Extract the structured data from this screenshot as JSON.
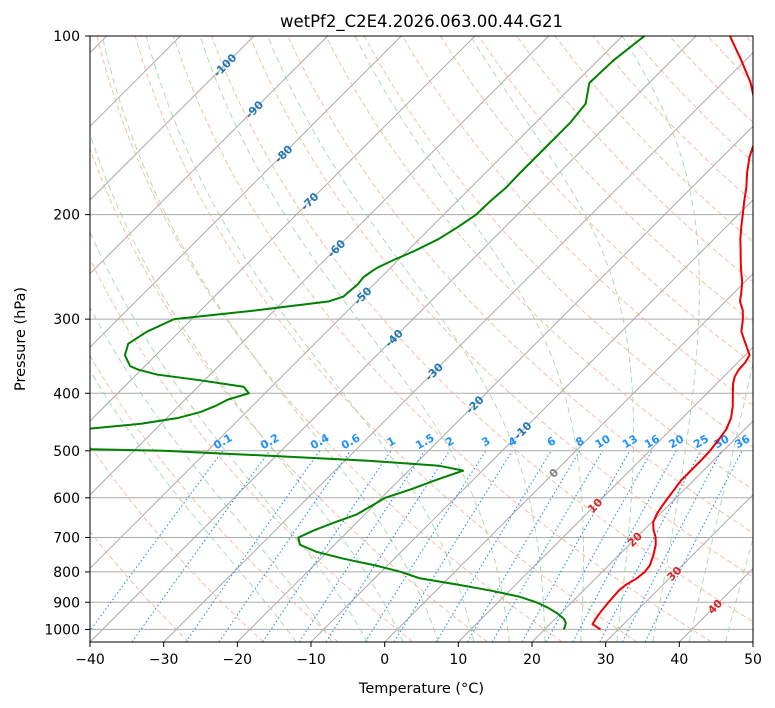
{
  "chart_data": {
    "type": "line",
    "subtype": "skew-t log-p diagram",
    "title": "wetPf2_C2E4.2026.063.00.44.G21",
    "xlabel": "Temperature (°C)",
    "ylabel": "Pressure (hPa)",
    "xlim": [
      -40,
      50
    ],
    "ylim": [
      1050,
      100
    ],
    "y_scale": "log",
    "x_ticks": [
      -40,
      -30,
      -20,
      -10,
      0,
      10,
      20,
      30,
      40,
      50
    ],
    "y_ticks": [
      100,
      200,
      300,
      400,
      500,
      600,
      700,
      800,
      900,
      1000
    ],
    "grid": true,
    "colors": {
      "temperature": "#ee0000",
      "dewpoint": "#008000",
      "isotherm": "#aaaaaa",
      "isobar": "#aaaaaa",
      "dry_adiabat": "#f8a58c",
      "moist_adiabat": "#9ad29a",
      "mixing_ratio": "#1e90ff",
      "isotherm_label_cold": "#1f77b4",
      "isotherm_label_warm": "#d62728",
      "zero_label": "#808080"
    },
    "series": [
      {
        "role": "temperature",
        "pressure": [
          1000,
          980,
          960,
          930,
          900,
          880,
          860,
          840,
          820,
          800,
          780,
          750,
          720,
          700,
          680,
          660,
          640,
          620,
          600,
          580,
          560,
          540,
          520,
          500,
          480,
          460,
          440,
          420,
          400,
          385,
          375,
          365,
          355,
          345,
          330,
          315,
          300,
          290,
          280,
          270,
          260,
          250,
          240,
          230,
          220,
          210,
          200,
          190,
          180,
          170,
          160,
          150,
          140,
          130,
          120,
          110,
          100
        ],
        "temperature": [
          27.6,
          25.8,
          25.5,
          25.2,
          25.0,
          24.9,
          24.8,
          25.0,
          25.6,
          25.8,
          25.6,
          24.7,
          23.6,
          22.6,
          21.3,
          20.2,
          19.6,
          19.2,
          18.9,
          18.6,
          18.3,
          18.3,
          18.3,
          18.2,
          17.9,
          17.5,
          16.6,
          15.2,
          13.5,
          12.2,
          11.5,
          11.1,
          11.0,
          10.6,
          8.5,
          6.3,
          4.8,
          3.6,
          2.0,
          0.9,
          -0.3,
          -1.8,
          -3.3,
          -4.8,
          -6.4,
          -7.9,
          -9.4,
          -11.0,
          -12.6,
          -14.5,
          -16.3,
          -17.8,
          -19.8,
          -22.8,
          -26.2,
          -30.5,
          -35.4
        ]
      },
      {
        "role": "dewpoint",
        "pressure": [
          1000,
          990,
          975,
          960,
          940,
          920,
          900,
          880,
          860,
          840,
          820,
          800,
          780,
          760,
          740,
          720,
          700,
          680,
          660,
          640,
          620,
          600,
          580,
          560,
          540,
          530,
          520,
          510,
          500,
          495,
          490,
          485,
          480,
          478,
          470,
          460,
          450,
          440,
          430,
          420,
          410,
          400,
          390,
          380,
          372,
          365,
          360,
          345,
          330,
          315,
          300,
          290,
          280,
          275,
          270,
          262,
          255,
          248,
          245,
          240,
          230,
          220,
          210,
          200,
          190,
          180,
          170,
          160,
          150,
          140,
          130,
          120,
          110,
          100
        ],
        "dewpoint": [
          22.6,
          22.4,
          22.0,
          21.2,
          19.6,
          17.6,
          15.2,
          12.0,
          7.4,
          2.0,
          -3.9,
          -7.3,
          -11.7,
          -16.9,
          -21.5,
          -24.7,
          -25.9,
          -24.7,
          -23.0,
          -21.1,
          -20.3,
          -19.5,
          -17.1,
          -15.0,
          -12.6,
          -16.5,
          -26.5,
          -40.6,
          -56.0,
          -72.7,
          -87.7,
          -96.7,
          -100.7,
          -100.0,
          -86.3,
          -69.8,
          -62.6,
          -58.4,
          -56.2,
          -55.0,
          -54.2,
          -52.2,
          -53.8,
          -60.8,
          -67.2,
          -70.4,
          -72.0,
          -74.2,
          -75.3,
          -74.4,
          -72.4,
          -62.5,
          -53.8,
          -52.5,
          -52.4,
          -52.2,
          -52.4,
          -52.0,
          -51.7,
          -50.9,
          -49.0,
          -47.4,
          -46.4,
          -45.6,
          -45.5,
          -45.2,
          -45.3,
          -45.3,
          -45.3,
          -45.3,
          -45.8,
          -48.1,
          -47.9,
          -47.0
        ]
      }
    ],
    "isotherm_labels": [
      "-100",
      "-90",
      "-80",
      "-70",
      "-60",
      "-50",
      "-40",
      "-30",
      "-20",
      "-10",
      "0",
      "10",
      "20",
      "30",
      "40"
    ],
    "mixing_ratio_labels": [
      "0.1",
      "0.2",
      "0.4",
      "0.6",
      "1",
      "1.5",
      "2",
      "3",
      "4",
      "6",
      "8",
      "10",
      "13",
      "16",
      "20",
      "25",
      "30",
      "36"
    ]
  }
}
